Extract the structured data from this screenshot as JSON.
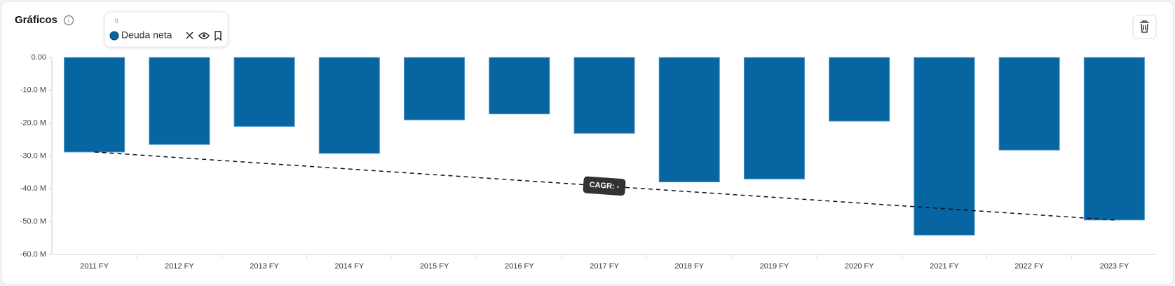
{
  "header": {
    "title": "Gráficos"
  },
  "chart_data": {
    "type": "bar",
    "categories": [
      "2011 FY",
      "2012 FY",
      "2013 FY",
      "2014 FY",
      "2015 FY",
      "2016 FY",
      "2017 FY",
      "2018 FY",
      "2019 FY",
      "2020 FY",
      "2021 FY",
      "2022 FY",
      "2023 FY"
    ],
    "series": [
      {
        "name": "Deuda neta",
        "color": "#0765a1",
        "values": [
          -28.8,
          -26.5,
          -21,
          -29.2,
          -19,
          -17.2,
          -23.1,
          -37.9,
          -37,
          -19.4,
          -54.1,
          -28.2,
          -49.5
        ]
      }
    ],
    "ylim": [
      -60,
      0
    ],
    "yticks": [
      {
        "value": 0,
        "label": "0.00"
      },
      {
        "value": -10,
        "label": "-10.0 M"
      },
      {
        "value": -20,
        "label": "-20.0 M"
      },
      {
        "value": -30,
        "label": "-30.0 M"
      },
      {
        "value": -40,
        "label": "-40.0 M"
      },
      {
        "value": -50,
        "label": "-50.0 M"
      },
      {
        "value": -60,
        "label": "-60.0 M"
      }
    ],
    "trendline_label": "CAGR: -"
  }
}
